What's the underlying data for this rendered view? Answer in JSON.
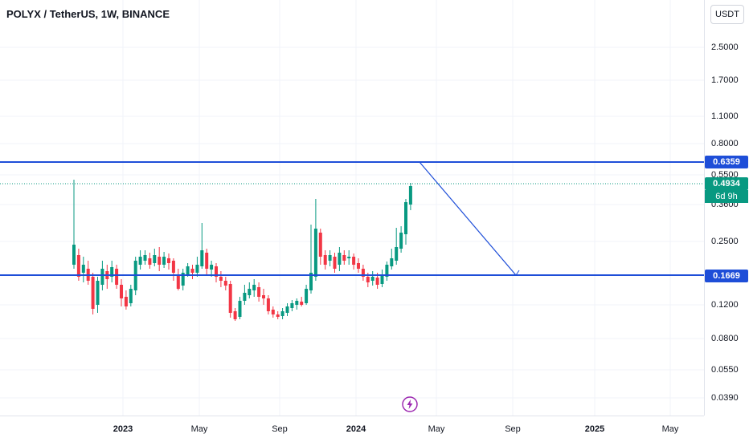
{
  "header": {
    "symbol_title": "POLYX / TetherUS, 1W, BINANCE",
    "currency_button": "USDT"
  },
  "price_axis": {
    "ticks": [
      "2.5000",
      "1.7000",
      "1.1000",
      "0.8000",
      "0.5500",
      "0.3600",
      "0.2500",
      "0.1200",
      "0.0800",
      "0.0550",
      "0.0390"
    ]
  },
  "time_axis": {
    "labels": [
      "2023",
      "May",
      "Sep",
      "2024",
      "May",
      "Sep",
      "2025",
      "May"
    ]
  },
  "price_tags": {
    "resistance": "0.6359",
    "current": "0.4934",
    "countdown": "6d 9h",
    "support": "0.1669"
  },
  "colors": {
    "up": "#089981",
    "down": "#f23645",
    "line": "#1e4ed8"
  },
  "icons": {
    "flash": "lightning-icon"
  }
}
